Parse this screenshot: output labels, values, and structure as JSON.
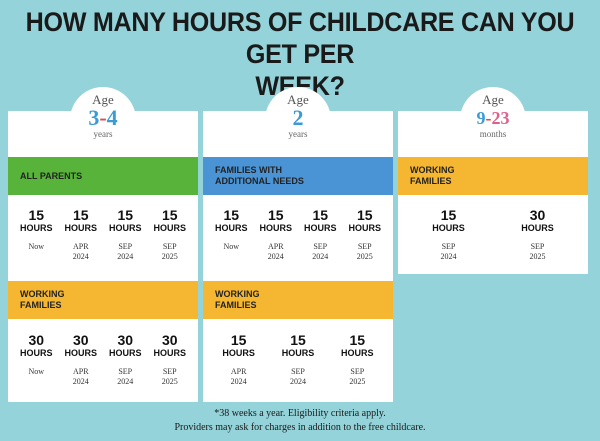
{
  "title_line1": "HOW MANY HOURS OF CHILDCARE CAN YOU GET PER",
  "title_line2": "WEEK?",
  "cards": [
    {
      "age_word": "Age",
      "range": "3-4",
      "unit": "years",
      "range_colors": [
        "#3a9bd6",
        "#e04a4a",
        "#3a9bd6"
      ],
      "groups": [
        {
          "label": "ALL PARENTS",
          "color": "#57b339",
          "items": [
            {
              "hours": "15",
              "unit": "HOURS",
              "date1": "Now",
              "date2": ""
            },
            {
              "hours": "15",
              "unit": "HOURS",
              "date1": "APR",
              "date2": "2024"
            },
            {
              "hours": "15",
              "unit": "HOURS",
              "date1": "SEP",
              "date2": "2024"
            },
            {
              "hours": "15",
              "unit": "HOURS",
              "date1": "SEP",
              "date2": "2025"
            }
          ]
        },
        {
          "label_line1": "WORKING",
          "label_line2": "FAMILIES",
          "color": "#f5b731",
          "items": [
            {
              "hours": "30",
              "unit": "HOURS",
              "date1": "Now",
              "date2": ""
            },
            {
              "hours": "30",
              "unit": "HOURS",
              "date1": "APR",
              "date2": "2024"
            },
            {
              "hours": "30",
              "unit": "HOURS",
              "date1": "SEP",
              "date2": "2024"
            },
            {
              "hours": "30",
              "unit": "HOURS",
              "date1": "SEP",
              "date2": "2025"
            }
          ]
        }
      ]
    },
    {
      "age_word": "Age",
      "range": "2",
      "unit": "years",
      "range_colors": [
        "#3a9bd6"
      ],
      "groups": [
        {
          "label_line1": "FAMILIES WITH",
          "label_line2": "ADDITIONAL NEEDS",
          "color": "#4a94d6",
          "items": [
            {
              "hours": "15",
              "unit": "HOURS",
              "date1": "Now",
              "date2": ""
            },
            {
              "hours": "15",
              "unit": "HOURS",
              "date1": "APR",
              "date2": "2024"
            },
            {
              "hours": "15",
              "unit": "HOURS",
              "date1": "SEP",
              "date2": "2024"
            },
            {
              "hours": "15",
              "unit": "HOURS",
              "date1": "SEP",
              "date2": "2025"
            }
          ]
        },
        {
          "label_line1": "WORKING",
          "label_line2": "FAMILIES",
          "color": "#f5b731",
          "items": [
            {
              "hours": "15",
              "unit": "HOURS",
              "date1": "APR",
              "date2": "2024"
            },
            {
              "hours": "15",
              "unit": "HOURS",
              "date1": "SEP",
              "date2": "2024"
            },
            {
              "hours": "15",
              "unit": "HOURS",
              "date1": "SEP",
              "date2": "2025"
            }
          ]
        }
      ]
    },
    {
      "age_word": "Age",
      "range": "9-23",
      "unit": "months",
      "range_colors": [
        "#3a9bd6",
        "#e04a4a",
        "#e0608a"
      ],
      "groups": [
        {
          "label_line1": "WORKING",
          "label_line2": "FAMILIES",
          "color": "#f5b731",
          "items": [
            {
              "hours": "15",
              "unit": "HOURS",
              "date1": "SEP",
              "date2": "2024"
            },
            {
              "hours": "30",
              "unit": "HOURS",
              "date1": "SEP",
              "date2": "2025"
            }
          ]
        }
      ]
    }
  ],
  "footnote_line1": "*38 weeks a year. Eligibility criteria apply.",
  "footnote_line2": "Providers may ask for charges in addition to the free childcare."
}
